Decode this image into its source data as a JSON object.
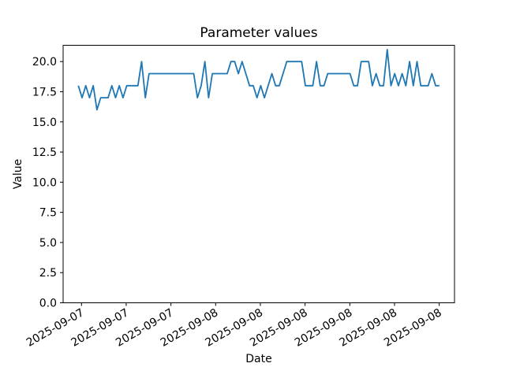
{
  "figure": {
    "background": "#ffffff"
  },
  "chart_data": {
    "type": "line",
    "title": "Parameter values",
    "xlabel": "Date",
    "ylabel": "Value",
    "line_color": "#1f77b4",
    "axis_color": "#000000",
    "grid": false,
    "legend": null,
    "ylim": [
      0,
      21.35
    ],
    "xlim": [
      -4.09,
      101.07
    ],
    "yticks": [
      0.0,
      2.5,
      5.0,
      7.5,
      10.0,
      12.5,
      15.0,
      17.5,
      20.0
    ],
    "x_tick_indices": [
      0.85,
      12.86,
      24.88,
      36.89,
      48.91,
      60.92,
      72.94,
      84.95,
      96.97
    ],
    "x_tick_labels": [
      "2025-09-07",
      "2025-09-07",
      "2025-09-07",
      "2025-09-08",
      "2025-09-08",
      "2025-09-08",
      "2025-09-08",
      "2025-09-08",
      "2025-09-08"
    ],
    "x_tick_rotation_deg": 30,
    "values": [
      18,
      17,
      18,
      17,
      18,
      16,
      17,
      17,
      17,
      18,
      17,
      18,
      17,
      18,
      18,
      18,
      18,
      20,
      17,
      19,
      19,
      19,
      19,
      19,
      19,
      19,
      19,
      19,
      19,
      19,
      19,
      19,
      17,
      18,
      20,
      17,
      19,
      19,
      19,
      19,
      19,
      20,
      20,
      19,
      20,
      19,
      18,
      18,
      17,
      18,
      17,
      18,
      19,
      18,
      18,
      19,
      20,
      20,
      20,
      20,
      20,
      18,
      18,
      18,
      20,
      18,
      18,
      19,
      19,
      19,
      19,
      19,
      19,
      19,
      18,
      18,
      20,
      20,
      20,
      18,
      19,
      18,
      18,
      21,
      18,
      19,
      18,
      19,
      18,
      20,
      18,
      20,
      18,
      18,
      18,
      19,
      18,
      18
    ]
  }
}
